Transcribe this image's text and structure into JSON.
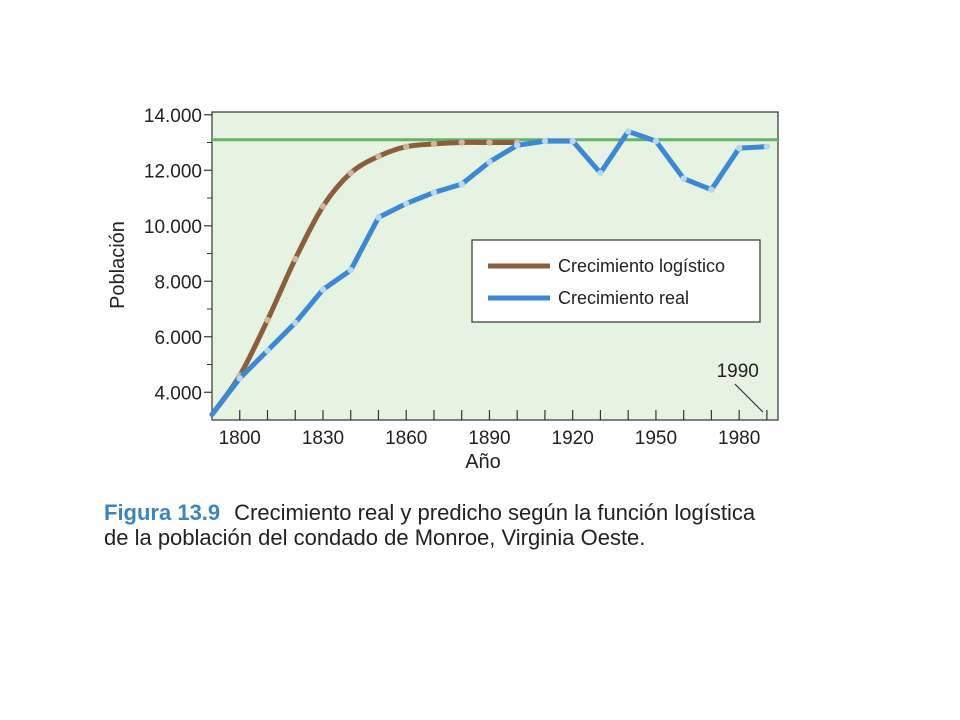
{
  "chart_data": {
    "type": "line",
    "xlabel": "Año",
    "ylabel": "Población",
    "xlim": [
      1790,
      1994
    ],
    "ylim": [
      3000,
      14100
    ],
    "x_ticks": [
      1800,
      1830,
      1860,
      1890,
      1920,
      1950,
      1980
    ],
    "x_tick_labels": [
      "1800",
      "1830",
      "1860",
      "1890",
      "1920",
      "1950",
      "1980"
    ],
    "y_ticks": [
      4000,
      6000,
      8000,
      10000,
      12000,
      14000
    ],
    "y_tick_labels": [
      "4.000",
      "6.000",
      "8.000",
      "10.000",
      "12.000",
      "14.000"
    ],
    "carrying_capacity": 13100,
    "annotation": {
      "label": "1990",
      "x": 1990,
      "y": 12900
    },
    "legend": {
      "position": "center-right",
      "items": [
        "Crecimiento logístico",
        "Crecimiento real"
      ]
    },
    "grid": false,
    "colors": {
      "logistic": "#8b5e3c",
      "real": "#3b88d4",
      "capacity": "#66b266",
      "background": "#e7f3e2"
    },
    "series": [
      {
        "name": "Crecimiento logístico",
        "x": [
          1790,
          1800,
          1810,
          1820,
          1830,
          1840,
          1850,
          1860,
          1870,
          1880,
          1890,
          1900
        ],
        "y": [
          3200,
          4600,
          6600,
          8800,
          10700,
          11900,
          12500,
          12850,
          12950,
          13000,
          13000,
          13000
        ]
      },
      {
        "name": "Crecimiento real",
        "x": [
          1790,
          1800,
          1810,
          1820,
          1830,
          1840,
          1850,
          1860,
          1870,
          1880,
          1890,
          1900,
          1910,
          1920,
          1930,
          1940,
          1950,
          1960,
          1970,
          1980,
          1990
        ],
        "y": [
          3200,
          4500,
          5500,
          6500,
          7700,
          8400,
          10300,
          10800,
          11200,
          11500,
          12300,
          12900,
          13050,
          13050,
          11900,
          13400,
          13050,
          11700,
          11300,
          12800,
          12850
        ]
      }
    ]
  },
  "caption": {
    "figure_label": "Figura 13.9",
    "text": "Crecimiento real y predicho según la función logística de la población del condado de Monroe, Virginia Oeste."
  }
}
